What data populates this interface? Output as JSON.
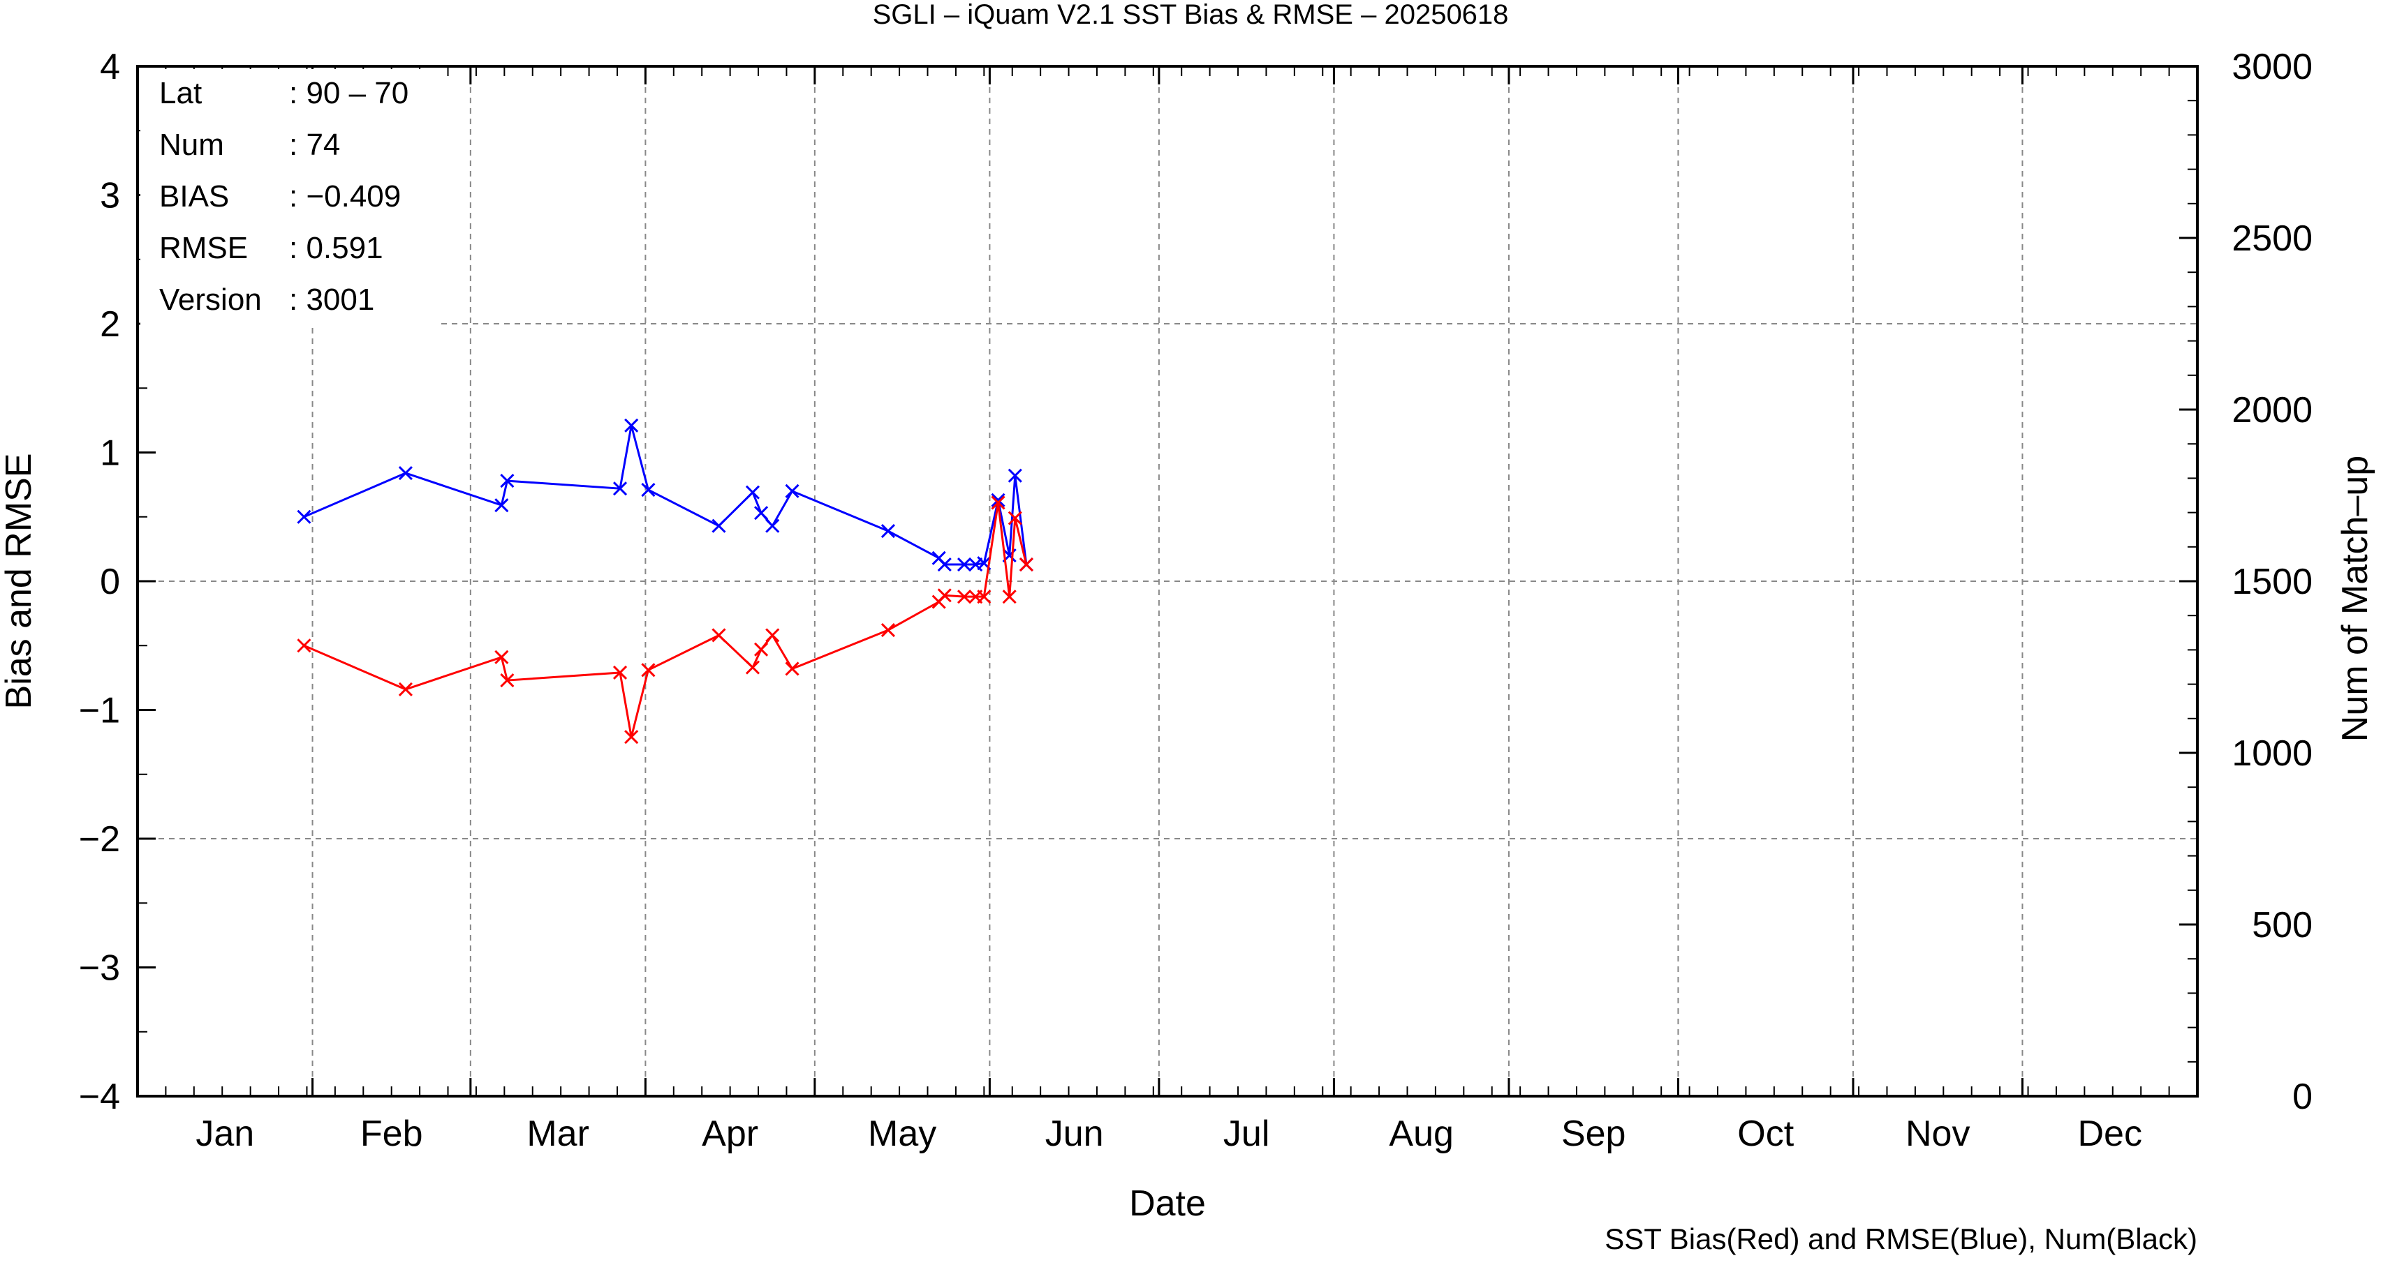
{
  "chart_data": {
    "type": "line",
    "title": "SGLI – iQuam V2.1 SST Bias & RMSE  – 20250618",
    "xlabel": "Date",
    "ylabel_left": "Bias and RMSE",
    "ylabel_right": "Num of Match–up",
    "footer": "SST Bias(Red) and RMSE(Blue), Num(Black)",
    "xlim_day": [
      0,
      365
    ],
    "ylim_left": [
      -4,
      4
    ],
    "ylim_right": [
      0,
      3000
    ],
    "grid": true,
    "month_labels": [
      "Jan",
      "Feb",
      "Mar",
      "Apr",
      "May",
      "Jun",
      "Jul",
      "Aug",
      "Sep",
      "Oct",
      "Nov",
      "Dec"
    ],
    "left_ticks": [
      {
        "v": 4,
        "label": "4"
      },
      {
        "v": 3,
        "label": "3"
      },
      {
        "v": 2,
        "label": "2"
      },
      {
        "v": 1,
        "label": "1"
      },
      {
        "v": 0,
        "label": "0"
      },
      {
        "v": -1,
        "label": "−1"
      },
      {
        "v": -2,
        "label": "−2"
      },
      {
        "v": -3,
        "label": "−3"
      },
      {
        "v": -4,
        "label": "−4"
      }
    ],
    "right_ticks": [
      {
        "v": 3000,
        "label": "3000"
      },
      {
        "v": 2500,
        "label": "2500"
      },
      {
        "v": 2000,
        "label": "2000"
      },
      {
        "v": 1500,
        "label": "1500"
      },
      {
        "v": 1000,
        "label": "1000"
      },
      {
        "v": 500,
        "label": "500"
      },
      {
        "v": 0,
        "label": "0"
      }
    ],
    "info": [
      {
        "key": "Lat",
        "value": ": 90 – 70"
      },
      {
        "key": "Num",
        "value": ": 74"
      },
      {
        "key": "BIAS",
        "value": ": −0.409"
      },
      {
        "key": "RMSE",
        "value": ": 0.591"
      },
      {
        "key": "Version",
        "value": ": 3001"
      }
    ],
    "series": [
      {
        "name": "RMSE",
        "color": "#0000ff",
        "points": [
          [
            29.5,
            0.5
          ],
          [
            47.5,
            0.84
          ],
          [
            64.5,
            0.59
          ],
          [
            65.5,
            0.78
          ],
          [
            85.5,
            0.72
          ],
          [
            87.5,
            1.21
          ],
          [
            90.5,
            0.71
          ],
          [
            103.0,
            0.43
          ],
          [
            109.0,
            0.69
          ],
          [
            110.5,
            0.53
          ],
          [
            112.5,
            0.43
          ],
          [
            116.0,
            0.7
          ],
          [
            133.0,
            0.39
          ],
          [
            142.0,
            0.18
          ],
          [
            143.0,
            0.13
          ],
          [
            146.5,
            0.13
          ],
          [
            148.5,
            0.13
          ],
          [
            150.0,
            0.14
          ],
          [
            152.5,
            0.63
          ],
          [
            154.5,
            0.2
          ],
          [
            155.5,
            0.82
          ],
          [
            157.5,
            0.13
          ]
        ]
      },
      {
        "name": "BIAS",
        "color": "#ff0000",
        "points": [
          [
            29.5,
            -0.5
          ],
          [
            47.5,
            -0.84
          ],
          [
            64.5,
            -0.59
          ],
          [
            65.5,
            -0.77
          ],
          [
            85.5,
            -0.71
          ],
          [
            87.5,
            -1.21
          ],
          [
            90.5,
            -0.69
          ],
          [
            103.0,
            -0.42
          ],
          [
            109.0,
            -0.67
          ],
          [
            110.5,
            -0.53
          ],
          [
            112.5,
            -0.42
          ],
          [
            116.0,
            -0.68
          ],
          [
            133.0,
            -0.38
          ],
          [
            142.0,
            -0.16
          ],
          [
            143.0,
            -0.11
          ],
          [
            146.5,
            -0.12
          ],
          [
            148.5,
            -0.12
          ],
          [
            150.0,
            -0.12
          ],
          [
            152.5,
            0.61
          ],
          [
            154.5,
            -0.12
          ],
          [
            155.5,
            0.49
          ],
          [
            157.5,
            0.13
          ]
        ]
      }
    ]
  }
}
